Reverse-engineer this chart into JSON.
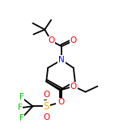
{
  "bg_color": "#ffffff",
  "bond_color": "#000000",
  "atom_colors": {
    "N": "#0000ff",
    "O": "#ff0000",
    "S": "#ffaa00",
    "F": "#00cc00",
    "C": "#000000"
  },
  "figsize": [
    1.52,
    1.52
  ],
  "dpi": 100
}
